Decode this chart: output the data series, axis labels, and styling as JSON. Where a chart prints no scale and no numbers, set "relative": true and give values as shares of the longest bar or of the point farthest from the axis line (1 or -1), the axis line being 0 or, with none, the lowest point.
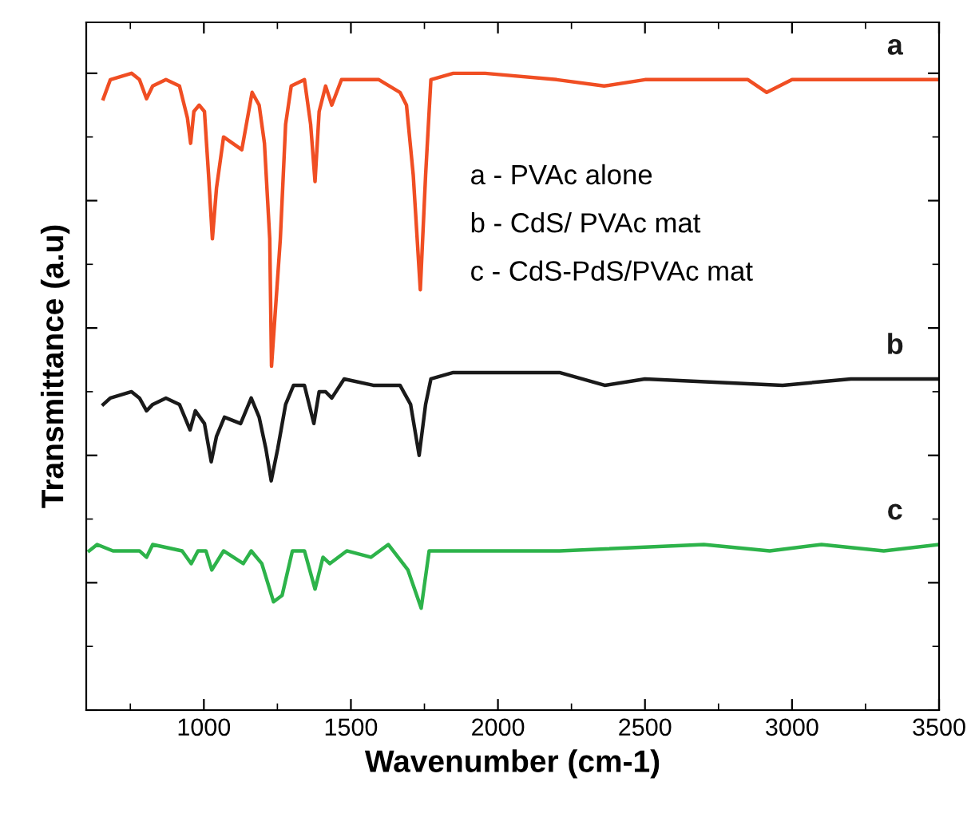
{
  "chart_data": {
    "type": "line",
    "relative": true,
    "xlabel": "Wavenumber (cm-1)",
    "ylabel": "Transmittance (a.u)",
    "xlim": [
      600,
      3500
    ],
    "xticks": [
      1000,
      1500,
      2000,
      2500,
      3000,
      3500
    ],
    "grid": false,
    "legend": false,
    "marker": "none",
    "line_style": "solid",
    "annotations": [
      "a - PVAc alone",
      "b - CdS/ PVAc mat",
      "c - CdS-PdS/PVAc mat"
    ],
    "series": [
      {
        "name": "a",
        "color": "#f04e23",
        "x": [
          658,
          682,
          754,
          781,
          805,
          826,
          871,
          917,
          944,
          955,
          966,
          984,
          1002,
          1016,
          1029,
          1043,
          1067,
          1098,
          1129,
          1164,
          1188,
          1206,
          1224,
          1230,
          1260,
          1278,
          1297,
          1342,
          1363,
          1378,
          1392,
          1414,
          1435,
          1468,
          1522,
          1595,
          1667,
          1689,
          1712,
          1736,
          1754,
          1772,
          1848,
          1956,
          2200,
          2361,
          2500,
          2850,
          2914,
          3000,
          3300,
          3500
        ],
        "values": [
          0.96,
          0.99,
          1.0,
          0.99,
          0.96,
          0.98,
          0.99,
          0.98,
          0.93,
          0.89,
          0.94,
          0.95,
          0.94,
          0.84,
          0.74,
          0.82,
          0.9,
          0.89,
          0.88,
          0.97,
          0.95,
          0.89,
          0.74,
          0.54,
          0.74,
          0.92,
          0.98,
          0.99,
          0.92,
          0.83,
          0.94,
          0.98,
          0.95,
          0.99,
          0.99,
          0.99,
          0.97,
          0.95,
          0.84,
          0.66,
          0.84,
          0.99,
          1.0,
          1.0,
          0.99,
          0.98,
          0.99,
          0.99,
          0.97,
          0.99,
          0.99,
          0.99
        ]
      },
      {
        "name": "b",
        "color": "#1a1a1a",
        "x": [
          658,
          682,
          754,
          781,
          805,
          826,
          871,
          917,
          953,
          971,
          1002,
          1025,
          1043,
          1070,
          1125,
          1161,
          1188,
          1211,
          1229,
          1251,
          1278,
          1305,
          1342,
          1374,
          1392,
          1414,
          1435,
          1477,
          1576,
          1667,
          1703,
          1732,
          1754,
          1772,
          1848,
          2209,
          2363,
          2500,
          2968,
          3200,
          3500
        ],
        "values": [
          0.48,
          0.49,
          0.5,
          0.49,
          0.47,
          0.48,
          0.49,
          0.48,
          0.44,
          0.47,
          0.45,
          0.39,
          0.43,
          0.46,
          0.45,
          0.49,
          0.46,
          0.41,
          0.36,
          0.41,
          0.48,
          0.51,
          0.51,
          0.45,
          0.5,
          0.5,
          0.49,
          0.52,
          0.51,
          0.51,
          0.48,
          0.4,
          0.48,
          0.52,
          0.53,
          0.53,
          0.51,
          0.52,
          0.51,
          0.52,
          0.52
        ]
      },
      {
        "name": "c",
        "color": "#2db34a",
        "x": [
          610,
          637,
          691,
          709,
          781,
          805,
          826,
          926,
          957,
          980,
          1007,
          1027,
          1067,
          1134,
          1161,
          1197,
          1237,
          1266,
          1301,
          1342,
          1378,
          1405,
          1428,
          1486,
          1568,
          1627,
          1694,
          1739,
          1766,
          1793,
          2209,
          2700,
          2924,
          3100,
          3312,
          3500
        ],
        "values": [
          0.25,
          0.26,
          0.25,
          0.25,
          0.25,
          0.24,
          0.26,
          0.25,
          0.23,
          0.25,
          0.25,
          0.22,
          0.25,
          0.23,
          0.25,
          0.23,
          0.17,
          0.18,
          0.25,
          0.25,
          0.19,
          0.24,
          0.23,
          0.25,
          0.24,
          0.26,
          0.22,
          0.16,
          0.25,
          0.25,
          0.25,
          0.26,
          0.25,
          0.26,
          0.25,
          0.26
        ]
      }
    ]
  }
}
